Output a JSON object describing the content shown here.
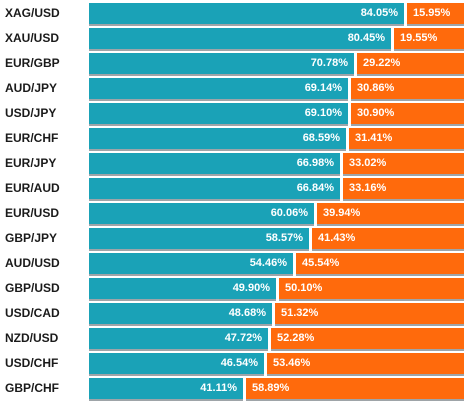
{
  "chart_data": {
    "type": "bar",
    "categories": [
      "XAG/USD",
      "XAU/USD",
      "EUR/GBP",
      "AUD/JPY",
      "USD/JPY",
      "EUR/CHF",
      "EUR/JPY",
      "EUR/AUD",
      "EUR/USD",
      "GBP/JPY",
      "AUD/USD",
      "GBP/USD",
      "USD/CAD",
      "NZD/USD",
      "USD/CHF",
      "GBP/CHF"
    ],
    "series": [
      {
        "values": [
          84.05,
          80.45,
          70.78,
          69.14,
          69.1,
          68.59,
          66.98,
          66.84,
          60.06,
          58.57,
          54.46,
          49.9,
          48.68,
          47.72,
          46.54,
          41.11
        ]
      },
      {
        "values": [
          15.95,
          19.55,
          29.22,
          30.86,
          30.9,
          31.41,
          33.02,
          33.16,
          39.94,
          41.43,
          45.54,
          50.1,
          51.32,
          52.28,
          53.46,
          58.89
        ]
      }
    ],
    "labels_long": [
      "84.05%",
      "80.45%",
      "70.78%",
      "69.14%",
      "69.10%",
      "68.59%",
      "66.98%",
      "66.84%",
      "60.06%",
      "58.57%",
      "54.46%",
      "49.90%",
      "48.68%",
      "47.72%",
      "46.54%",
      "41.11%"
    ],
    "labels_short": [
      "15.95%",
      "19.55%",
      "29.22%",
      "30.86%",
      "30.90%",
      "31.41%",
      "33.02%",
      "33.16%",
      "39.94%",
      "41.43%",
      "45.54%",
      "50.10%",
      "51.32%",
      "52.28%",
      "53.46%",
      "58.89%"
    ],
    "stacked": true,
    "orientation": "horizontal",
    "xlim": [
      0,
      100
    ],
    "colors": [
      "#1aa2b7",
      "#ff6a0c"
    ]
  }
}
